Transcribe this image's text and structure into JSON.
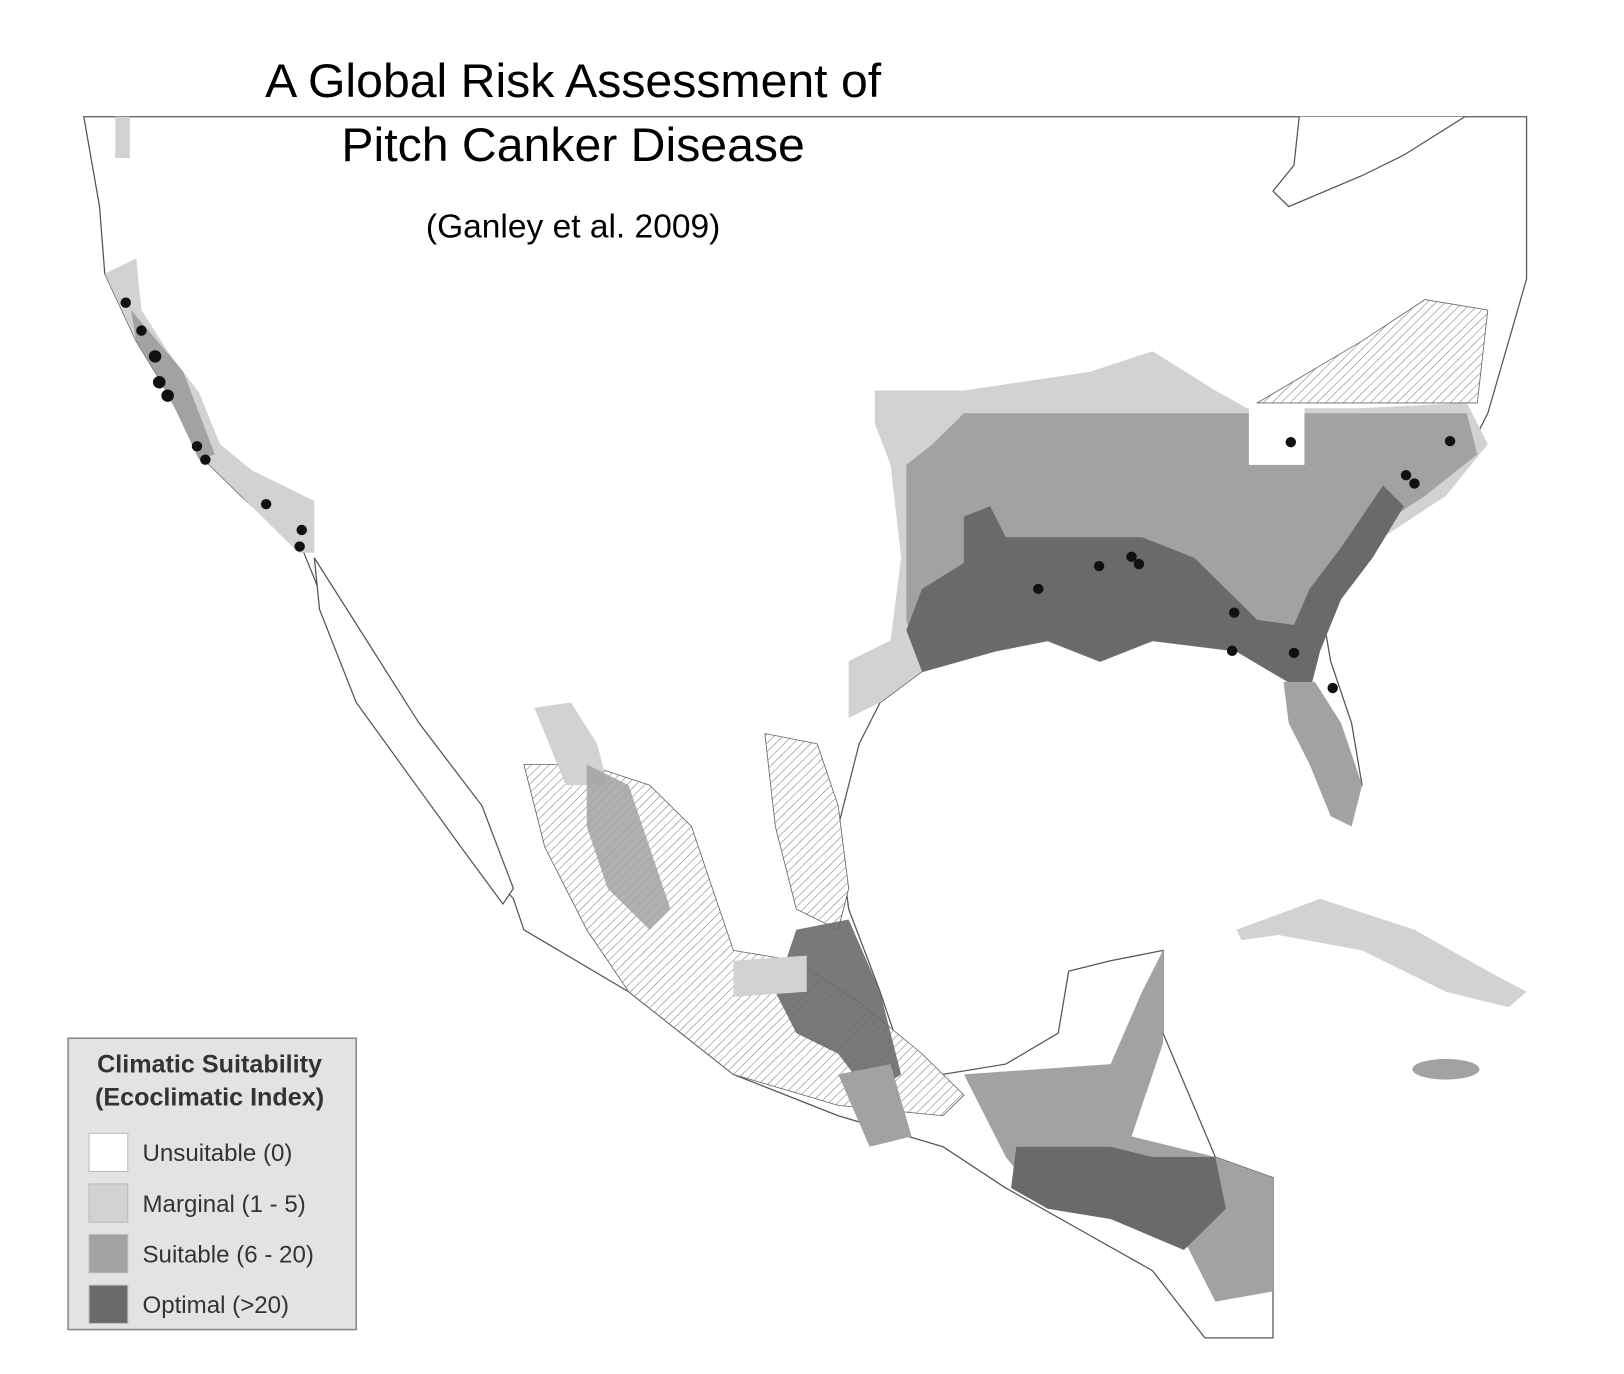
{
  "header": {
    "title_lines": [
      "A Global Risk Assessment of",
      "Pitch Canker Disease"
    ],
    "subtitle": "(Ganley et al. 2009)"
  },
  "legend": {
    "title_lines": [
      "Climatic Suitability",
      "(Ecoclimatic Index)"
    ],
    "items": [
      {
        "label": "Unsuitable (0)",
        "color": "#ffffff"
      },
      {
        "label": "Marginal (1 - 5)",
        "color": "#d2d2d2"
      },
      {
        "label": "Suitable (6 - 20)",
        "color": "#a2a2a2"
      },
      {
        "label": "Optimal (>20)",
        "color": "#6a6a6a"
      }
    ]
  }
}
